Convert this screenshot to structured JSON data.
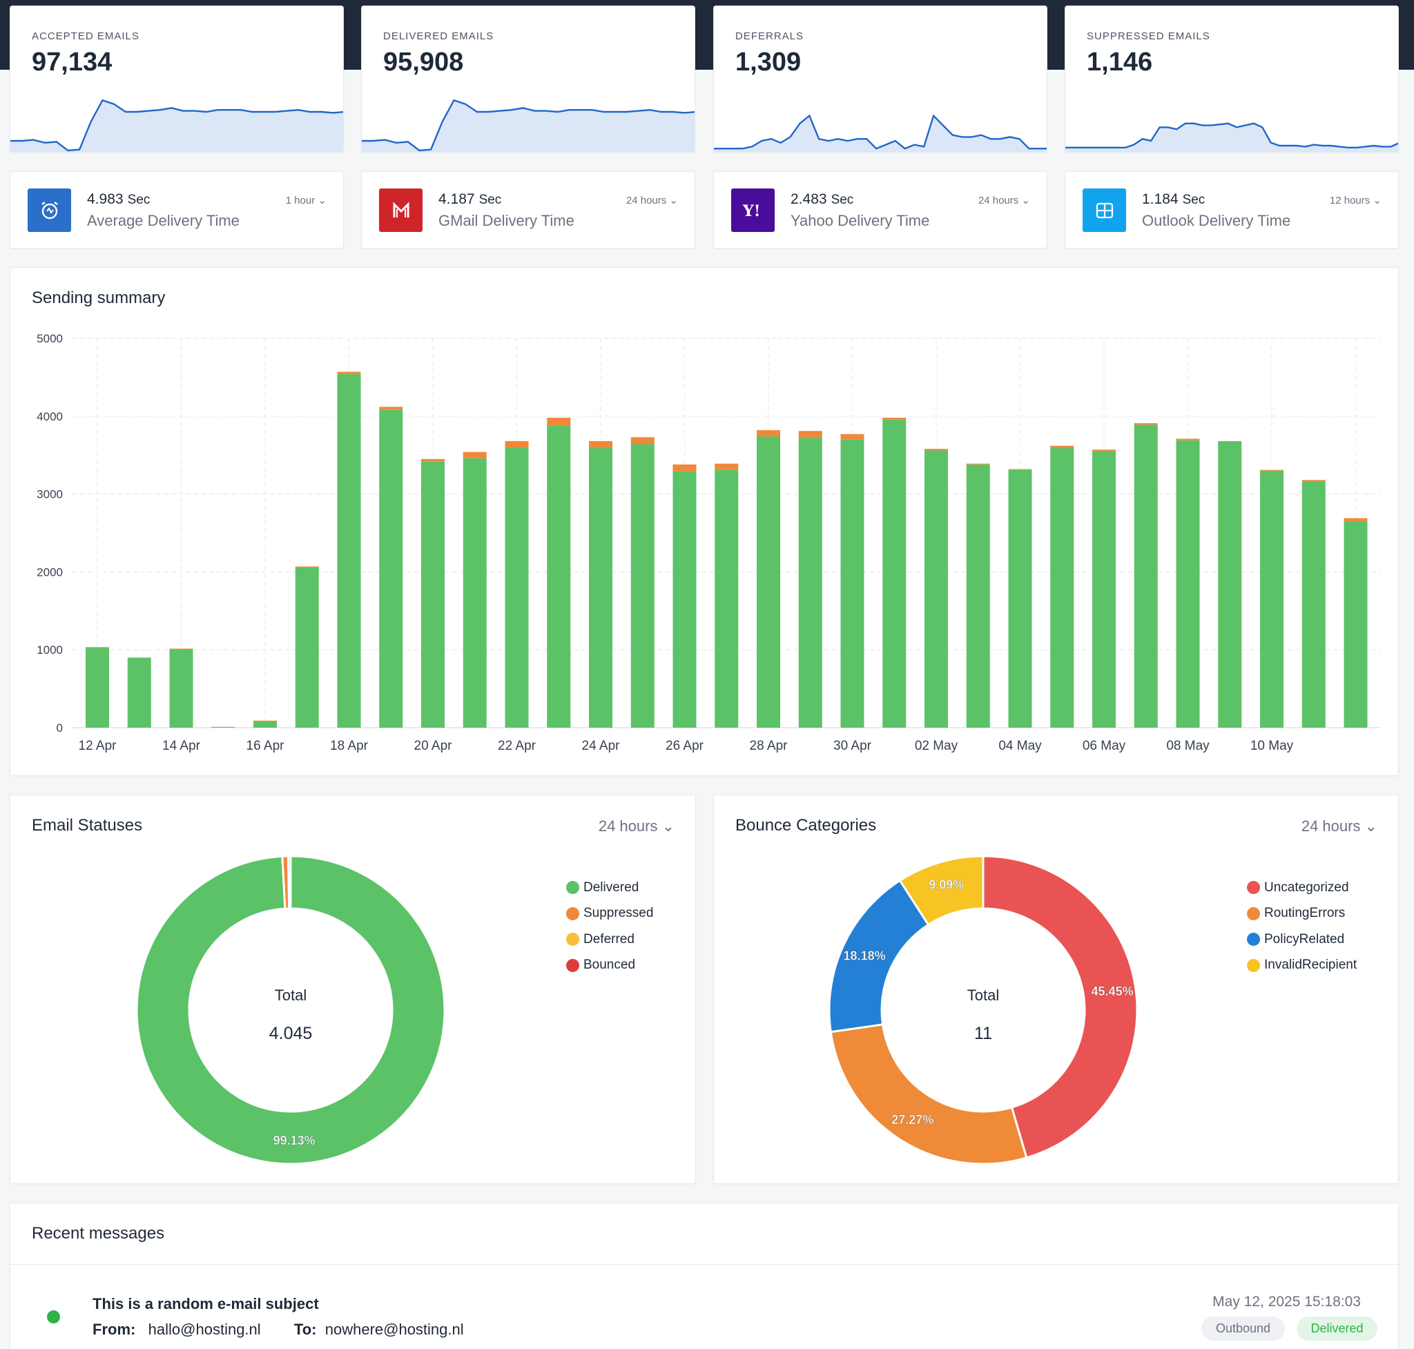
{
  "stats": [
    {
      "label": "ACCEPTED EMAILS",
      "value": "97,134"
    },
    {
      "label": "DELIVERED EMAILS",
      "value": "95,908"
    },
    {
      "label": "DEFERRALS",
      "value": "1,309"
    },
    {
      "label": "SUPPRESSED EMAILS",
      "value": "1,146"
    }
  ],
  "delivery": [
    {
      "value": "4.983",
      "unit": "Sec",
      "caption": "Average Delivery Time",
      "period": "1 hour",
      "icon": "alarm-clock-icon",
      "color": "#2a6fc9"
    },
    {
      "value": "4.187",
      "unit": "Sec",
      "caption": "GMail Delivery Time",
      "period": "24 hours",
      "icon": "gmail-icon",
      "color": "#d0242b"
    },
    {
      "value": "2.483",
      "unit": "Sec",
      "caption": "Yahoo Delivery Time",
      "period": "24 hours",
      "icon": "yahoo-icon",
      "color": "#4a0c9b"
    },
    {
      "value": "1.184",
      "unit": "Sec",
      "caption": "Outlook Delivery Time",
      "period": "12 hours",
      "icon": "outlook-icon",
      "color": "#12a3ee"
    }
  ],
  "summary": {
    "title": "Sending summary"
  },
  "statuses": {
    "title": "Email Statuses",
    "period": "24 hours",
    "total_label": "Total",
    "total": "4.045"
  },
  "bounces": {
    "title": "Bounce Categories",
    "period": "24 hours",
    "total_label": "Total",
    "total": "11"
  },
  "recent": {
    "title": "Recent messages",
    "subject": "This is a random e-mail subject",
    "from_label": "From:",
    "from": "hallo@hosting.nl",
    "to_label": "To:",
    "to": "nowhere@hosting.nl",
    "date": "May 12, 2025 15:18:03",
    "direction": "Outbound",
    "status": "Delivered",
    "status_color": "#2fb344"
  },
  "chart_data": [
    {
      "type": "bar",
      "title": "Sending summary",
      "stacked": true,
      "x": [
        "12 Apr",
        "13 Apr",
        "14 Apr",
        "15 Apr",
        "16 Apr",
        "17 Apr",
        "18 Apr",
        "19 Apr",
        "20 Apr",
        "21 Apr",
        "22 Apr",
        "23 Apr",
        "24 Apr",
        "25 Apr",
        "26 Apr",
        "27 Apr",
        "28 Apr",
        "29 Apr",
        "30 Apr",
        "01 May",
        "02 May",
        "03 May",
        "04 May",
        "05 May",
        "06 May",
        "07 May",
        "08 May",
        "09 May",
        "10 May",
        "11 May",
        "12 May"
      ],
      "tick_labels": [
        "12 Apr",
        "14 Apr",
        "16 Apr",
        "18 Apr",
        "20 Apr",
        "22 Apr",
        "24 Apr",
        "26 Apr",
        "28 Apr",
        "30 Apr",
        "02 May",
        "04 May",
        "06 May",
        "08 May",
        "10 May"
      ],
      "series": [
        {
          "name": "Delivered",
          "color": "#5bc267",
          "values": [
            1030,
            900,
            1010,
            10,
            80,
            2060,
            4540,
            4080,
            3420,
            3460,
            3600,
            3880,
            3590,
            3640,
            3290,
            3310,
            3740,
            3720,
            3700,
            3960,
            3560,
            3380,
            3310,
            3590,
            3550,
            3890,
            3690,
            3670,
            3300,
            3160,
            2650
          ]
        },
        {
          "name": "Suppressed",
          "color": "#f0883a",
          "values": [
            5,
            0,
            5,
            0,
            10,
            10,
            30,
            40,
            30,
            80,
            80,
            100,
            90,
            90,
            90,
            80,
            80,
            90,
            70,
            20,
            20,
            10,
            10,
            30,
            20,
            20,
            20,
            10,
            10,
            20,
            40
          ]
        }
      ],
      "ylim": [
        0,
        5000
      ],
      "yticks": [
        0,
        1000,
        2000,
        3000,
        4000,
        5000
      ],
      "grid": true
    },
    {
      "type": "pie",
      "title": "Email Statuses",
      "donut": true,
      "labels": [
        "Delivered",
        "Suppressed",
        "Deferred",
        "Bounced"
      ],
      "values": [
        99.13,
        0.62,
        0.25,
        0
      ],
      "colors": [
        "#5bc267",
        "#f0883a",
        "#f8be3a",
        "#df3b3b"
      ],
      "data_labels": [
        "99.13%",
        "",
        "",
        ""
      ]
    },
    {
      "type": "pie",
      "title": "Bounce Categories",
      "donut": true,
      "labels": [
        "Uncategorized",
        "RoutingErrors",
        "PolicyRelated",
        "InvalidRecipient"
      ],
      "values": [
        45.45,
        27.27,
        18.18,
        9.09
      ],
      "colors": [
        "#e95353",
        "#ee8a38",
        "#2380d4",
        "#f7c424"
      ],
      "data_labels": [
        "45.45%",
        "27.27%",
        "18.18%",
        "9.09%"
      ]
    }
  ],
  "sparklines": [
    {
      "color": "#2166c9",
      "values": [
        10,
        10,
        11,
        8,
        9,
        0,
        1,
        30,
        52,
        48,
        40,
        40,
        41,
        42,
        44,
        41,
        41,
        40,
        42,
        42,
        42,
        40,
        40,
        40,
        41,
        42,
        40,
        40,
        39,
        40
      ]
    },
    {
      "color": "#2166c9",
      "values": [
        10,
        10,
        11,
        8,
        9,
        0,
        1,
        30,
        52,
        48,
        40,
        40,
        41,
        42,
        44,
        41,
        41,
        40,
        42,
        42,
        42,
        40,
        40,
        40,
        41,
        42,
        40,
        40,
        39,
        40
      ]
    },
    {
      "color": "#2166c9",
      "values": [
        2,
        2,
        2,
        2,
        4,
        10,
        12,
        8,
        14,
        28,
        36,
        12,
        10,
        12,
        10,
        12,
        12,
        2,
        6,
        10,
        2,
        6,
        4,
        36,
        26,
        16,
        14,
        14,
        16,
        12,
        12,
        14,
        12,
        2,
        2,
        2
      ]
    },
    {
      "color": "#2166c9",
      "values": [
        3,
        3,
        3,
        3,
        3,
        3,
        3,
        3,
        6,
        12,
        10,
        24,
        24,
        22,
        28,
        28,
        26,
        26,
        27,
        28,
        24,
        26,
        28,
        24,
        8,
        5,
        5,
        5,
        4,
        6,
        5,
        5,
        4,
        3,
        3,
        4,
        5,
        4,
        4,
        8
      ]
    }
  ]
}
